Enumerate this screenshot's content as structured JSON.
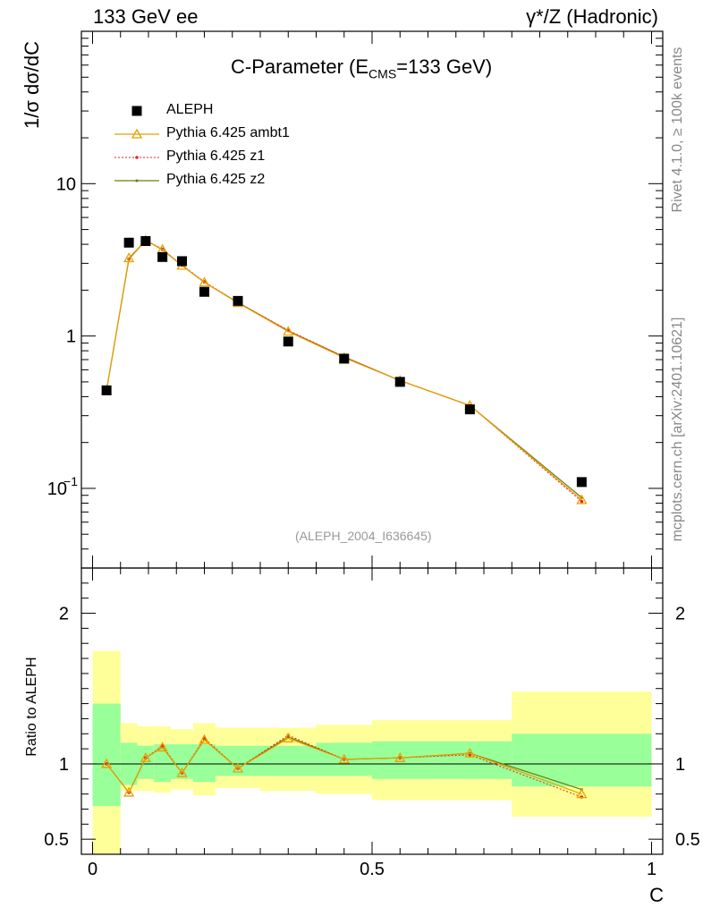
{
  "header": {
    "left": "133 GeV ee",
    "right": "γ*/Z (Hadronic)"
  },
  "title": {
    "main": "C-Parameter (E",
    "sub": "CMS",
    "end": "=133 GeV)"
  },
  "y_axis_label": "1/σ  dσ/dC",
  "ratio_axis_label": "Ratio to ALEPH",
  "x_axis_label": "C",
  "side_text": {
    "rivet": "Rivet 4.1.0, ≥ 100k events",
    "mcplots": "mcplots.cern.ch [arXiv:2401.10621]"
  },
  "analysis_tag": "(ALEPH_2004_I636645)",
  "legend": [
    {
      "label": "ALEPH",
      "color": "#000000",
      "style": "square"
    },
    {
      "label": "Pythia 6.425 ambt1",
      "color": "#e8a000",
      "style": "triangle"
    },
    {
      "label": "Pythia 6.425 z1",
      "color": "#e8281e",
      "style": "dotted"
    },
    {
      "label": "Pythia 6.425 z2",
      "color": "#6b7d10",
      "style": "solid-dot"
    }
  ],
  "chart_data": [
    {
      "type": "scatter",
      "panel": "main",
      "title": "C-Parameter (ECMS=133 GeV)",
      "xlabel": "C",
      "ylabel": "1/σ  dσ/dC",
      "yscale": "log",
      "xlim": [
        -0.02,
        1.02
      ],
      "ylim": [
        0.03,
        100
      ],
      "x_ticks": [
        "0",
        "0.5",
        "1"
      ],
      "y_ticks": [
        "10^-1",
        "1",
        "10"
      ],
      "series": [
        {
          "name": "ALEPH",
          "x": [
            0.025,
            0.065,
            0.095,
            0.125,
            0.16,
            0.2,
            0.26,
            0.35,
            0.45,
            0.55,
            0.675,
            0.875
          ],
          "y": [
            0.44,
            4.1,
            4.2,
            3.3,
            3.1,
            1.95,
            1.7,
            0.92,
            0.71,
            0.5,
            0.33,
            0.11
          ]
        },
        {
          "name": "Pythia 6.425 ambt1",
          "x": [
            0.025,
            0.065,
            0.095,
            0.125,
            0.16,
            0.2,
            0.26,
            0.35,
            0.45,
            0.55,
            0.675,
            0.875
          ],
          "y": [
            0.44,
            3.25,
            4.25,
            3.7,
            2.9,
            2.25,
            1.65,
            1.07,
            0.72,
            0.51,
            0.35,
            0.084
          ]
        },
        {
          "name": "Pythia 6.425 z1",
          "x": [
            0.025,
            0.065,
            0.095,
            0.125,
            0.16,
            0.2,
            0.26,
            0.35,
            0.45,
            0.55,
            0.675,
            0.875
          ],
          "y": [
            0.44,
            3.2,
            4.25,
            3.72,
            2.92,
            2.27,
            1.66,
            1.09,
            0.73,
            0.51,
            0.35,
            0.082
          ]
        },
        {
          "name": "Pythia 6.425 z2",
          "x": [
            0.025,
            0.065,
            0.095,
            0.125,
            0.16,
            0.2,
            0.26,
            0.35,
            0.45,
            0.55,
            0.675,
            0.875
          ],
          "y": [
            0.44,
            3.2,
            4.25,
            3.68,
            2.9,
            2.25,
            1.66,
            1.08,
            0.73,
            0.51,
            0.35,
            0.087
          ]
        }
      ]
    },
    {
      "type": "line",
      "panel": "ratio",
      "ylabel": "Ratio to ALEPH",
      "xlabel": "C",
      "xlim": [
        -0.02,
        1.02
      ],
      "ylim": [
        0.4,
        2.3
      ],
      "y_ticks": [
        "0.5",
        "1",
        "2"
      ],
      "x_ticks": [
        "0",
        "0.5",
        "1"
      ],
      "reference": 1,
      "bands": {
        "bin_edges": [
          0,
          0.05,
          0.08,
          0.11,
          0.14,
          0.18,
          0.22,
          0.3,
          0.4,
          0.5,
          0.6,
          0.75,
          1.0
        ],
        "stat_lo": [
          0.72,
          0.86,
          0.9,
          0.88,
          0.9,
          0.88,
          0.92,
          0.92,
          0.92,
          0.9,
          0.9,
          0.85
        ],
        "stat_hi": [
          1.4,
          1.14,
          1.12,
          1.13,
          1.13,
          1.13,
          1.12,
          1.12,
          1.14,
          1.15,
          1.15,
          1.2
        ],
        "total_lo": [
          0.4,
          0.82,
          0.82,
          0.81,
          0.83,
          0.79,
          0.84,
          0.82,
          0.8,
          0.76,
          0.76,
          0.65
        ],
        "total_hi": [
          1.75,
          1.27,
          1.25,
          1.25,
          1.23,
          1.27,
          1.24,
          1.24,
          1.26,
          1.29,
          1.29,
          1.48
        ]
      },
      "series": [
        {
          "name": "Pythia 6.425 ambt1",
          "x": [
            0.025,
            0.065,
            0.095,
            0.125,
            0.16,
            0.2,
            0.26,
            0.35,
            0.45,
            0.55,
            0.675,
            0.875
          ],
          "y": [
            1.0,
            0.81,
            1.04,
            1.11,
            0.94,
            1.16,
            0.97,
            1.17,
            1.03,
            1.04,
            1.07,
            0.8
          ]
        },
        {
          "name": "Pythia 6.425 z1",
          "x": [
            0.025,
            0.065,
            0.095,
            0.125,
            0.16,
            0.2,
            0.26,
            0.35,
            0.45,
            0.55,
            0.675,
            0.875
          ],
          "y": [
            1.0,
            0.81,
            1.04,
            1.12,
            0.94,
            1.17,
            0.97,
            1.19,
            1.03,
            1.04,
            1.06,
            0.78
          ]
        },
        {
          "name": "Pythia 6.425 z2",
          "x": [
            0.025,
            0.065,
            0.095,
            0.125,
            0.16,
            0.2,
            0.26,
            0.35,
            0.45,
            0.55,
            0.675,
            0.875
          ],
          "y": [
            1.0,
            0.81,
            1.04,
            1.11,
            0.94,
            1.16,
            0.97,
            1.18,
            1.03,
            1.04,
            1.07,
            0.83
          ]
        }
      ]
    }
  ]
}
